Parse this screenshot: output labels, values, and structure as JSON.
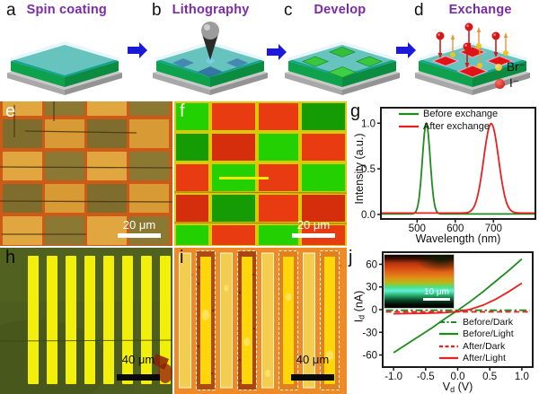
{
  "figure": {
    "panels": {
      "a": {
        "label": "a",
        "title": "Spin coating"
      },
      "b": {
        "label": "b",
        "title": "Lithography"
      },
      "c": {
        "label": "c",
        "title": "Develop"
      },
      "d": {
        "label": "d",
        "title": "Exchange"
      },
      "e": {
        "label": "e",
        "scalebar": "20 μm"
      },
      "f": {
        "label": "f",
        "scalebar": "20 μm"
      },
      "g": {
        "label": "g"
      },
      "h": {
        "label": "h",
        "scalebar": "40 μm"
      },
      "i": {
        "label": "i",
        "scalebar": "40 μm"
      },
      "j": {
        "label": "j",
        "inset_scalebar": "10 μm"
      }
    },
    "ion_legend": {
      "br": {
        "label": "Br⁻",
        "color": "#e6c21c"
      },
      "i": {
        "label": "I⁻",
        "color": "#cc1414"
      }
    },
    "colors": {
      "title_purple": "#7b2aa8",
      "arrow_blue": "#1a1ad8",
      "film_teal": "#14a391",
      "film_green": "#0fa24d",
      "before_green": "#1e8c1e",
      "after_red": "#e82020"
    }
  },
  "chart_data": [
    {
      "id": "g",
      "type": "line",
      "xlabel": "Wavelength (nm)",
      "ylabel": "Intensity (a.u.)",
      "xlim": [
        405,
        810
      ],
      "ylim": [
        -0.05,
        1.17
      ],
      "xticks": [
        500,
        600,
        700
      ],
      "xtick_labels": [
        "500",
        "600",
        "700"
      ],
      "yticks": [
        0.0,
        0.5,
        1.0
      ],
      "ytick_labels": [
        "0.0",
        "0.5",
        "1.0"
      ],
      "grid": false,
      "legend_position": "upper left",
      "series": [
        {
          "name": "Before exchange",
          "color": "#1e8c1e",
          "style": "solid",
          "baseline": 0.005,
          "peak": {
            "center": 524,
            "fwhm": 24,
            "height": 0.995
          }
        },
        {
          "name": "After exchange",
          "color": "#e82020",
          "style": "solid",
          "baseline": 0.015,
          "peak": {
            "center": 694,
            "fwhm": 46,
            "height": 0.98
          }
        }
      ]
    },
    {
      "id": "j",
      "type": "line",
      "xlabel": {
        "pre": "V",
        "sub": "d",
        "post": " (V)"
      },
      "ylabel": {
        "pre": "I",
        "sub": "d",
        "post": " (nA)"
      },
      "xlim": [
        -1.17,
        1.17
      ],
      "ylim": [
        -76,
        76
      ],
      "xticks": [
        -1.0,
        -0.5,
        0.0,
        0.5,
        1.0
      ],
      "xtick_labels": [
        "-1.0",
        "-0.5",
        "0.0",
        "0.5",
        "1.0"
      ],
      "yticks": [
        -60,
        -30,
        0,
        30,
        60
      ],
      "ytick_labels": [
        "-60",
        "-30",
        "0",
        "30",
        "60"
      ],
      "grid": false,
      "legend_position": "lower right",
      "series": [
        {
          "name": "Before/Dark",
          "color": "#1e8c1e",
          "style": "dashdot",
          "x": [
            -1.12,
            1.12
          ],
          "y": [
            -0.8,
            -0.8
          ]
        },
        {
          "name": "Before/Light",
          "color": "#1e8c1e",
          "style": "solid",
          "x": [
            -1.0,
            -0.8,
            -0.6,
            -0.4,
            -0.2,
            0.0,
            0.2,
            0.4,
            0.6,
            0.8,
            1.0
          ],
          "y": [
            -57,
            -46,
            -35,
            -24,
            -12,
            -1,
            11,
            24,
            38,
            52,
            67
          ]
        },
        {
          "name": "After/Dark",
          "color": "#e82020",
          "style": "dashed",
          "x": [
            -1.12,
            1.12
          ],
          "y": [
            -3,
            -3
          ]
        },
        {
          "name": "After/Light",
          "color": "#e82020",
          "style": "solid",
          "x": [
            -1.0,
            -0.8,
            -0.6,
            -0.4,
            -0.2,
            0.0,
            0.1,
            0.2,
            0.4,
            0.6,
            0.8,
            1.0
          ],
          "y": [
            -5.5,
            -5.2,
            -5.0,
            -4.6,
            -4.0,
            -2.5,
            -1.2,
            0.5,
            6,
            14,
            24,
            35
          ]
        }
      ]
    }
  ]
}
